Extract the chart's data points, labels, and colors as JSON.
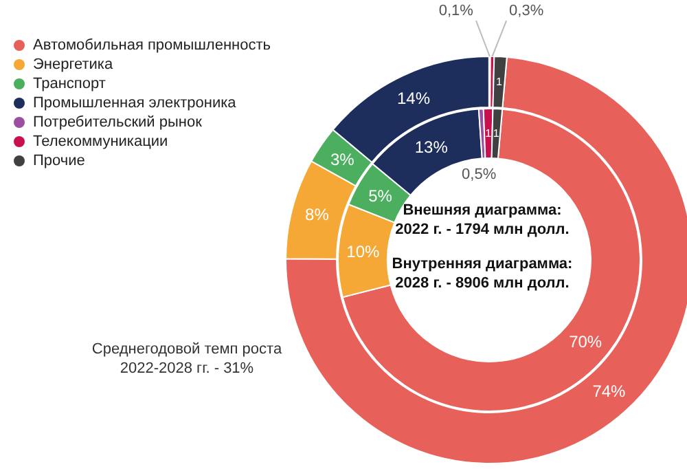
{
  "chart_data": {
    "type": "donut",
    "categories": [
      "Автомобильная промышленность",
      "Энергетика",
      "Транспорт",
      "Промышленная электроника",
      "Потребительский рынок",
      "Телекоммуникации",
      "Прочие"
    ],
    "colors": [
      "#e8605a",
      "#f5a836",
      "#4caf5f",
      "#1d2d5c",
      "#9b4fa0",
      "#c8104f",
      "#404040"
    ],
    "series": [
      {
        "values": [
          74,
          8,
          3,
          14,
          0.1,
          0.3,
          1
        ],
        "value_labels": [
          "74%",
          "8%",
          "3%",
          "14%",
          "0,1%",
          "0,3%",
          "1"
        ]
      },
      {
        "values": [
          70,
          10,
          5,
          13,
          0.5,
          1,
          1
        ],
        "value_labels": [
          "70%",
          "10%",
          "5%",
          "13%",
          "0,5%",
          "1",
          "1"
        ]
      }
    ],
    "legend": "top left",
    "annotations": [
      "Среднегодовой темп роста\n2022-2028 гг. - 31%",
      "Внешняя диаграмма:\n2022 г. - 1794 млн долл.",
      "Внутренняя диаграмма:\n2028 г. - 8906 млн долл."
    ]
  }
}
